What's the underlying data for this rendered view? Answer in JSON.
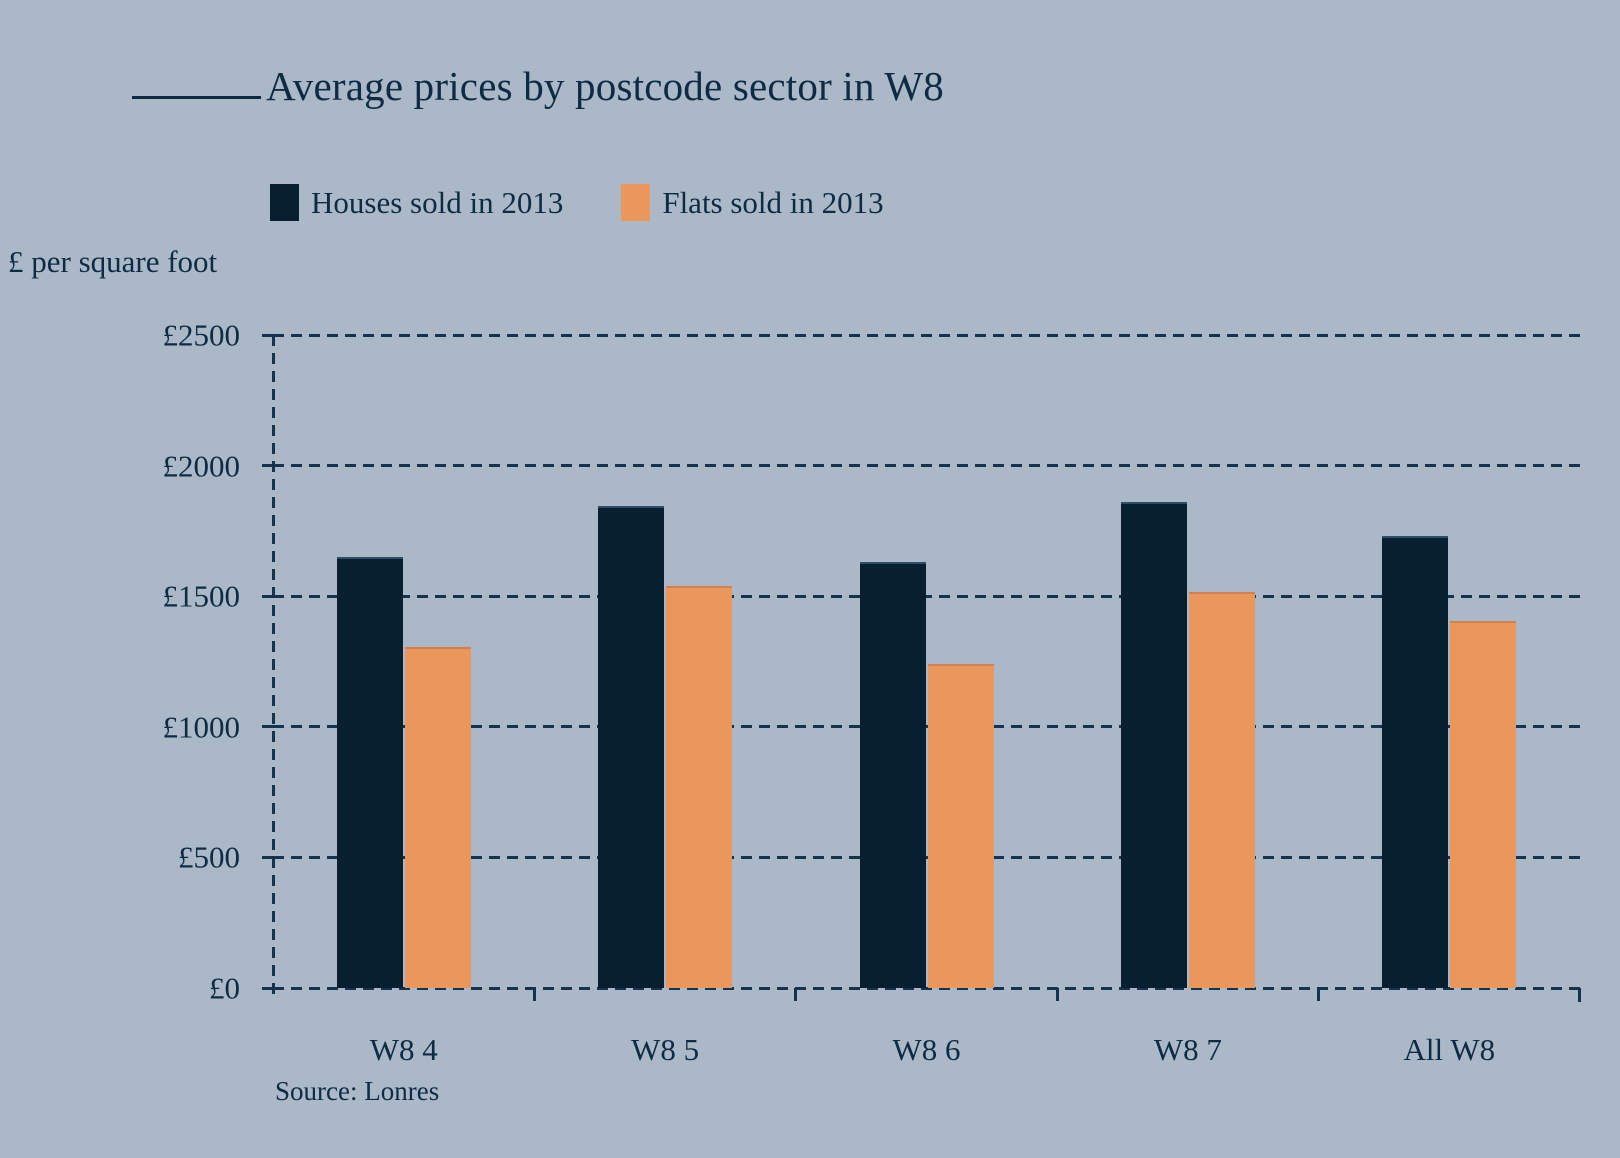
{
  "title": "Average prices by postcode sector in W8",
  "source": "Source: Lonres",
  "colors": {
    "background": "#abb8c8",
    "text": "#0e2b44",
    "gridline": "#16334e",
    "houses": "#071f2f",
    "flats": "#ea975c"
  },
  "chart_data": {
    "type": "bar",
    "title": "Average prices by postcode sector in W8",
    "ylabel": "£ per square foot",
    "categories": [
      "W8 4",
      "W8 5",
      "W8 6",
      "W8 7",
      "All W8"
    ],
    "series": [
      {
        "name": "Houses sold in 2013",
        "color": "#071f2f",
        "values": [
          1650,
          1845,
          1630,
          1860,
          1730
        ]
      },
      {
        "name": "Flats sold in 2013",
        "color": "#ea975c",
        "values": [
          1305,
          1540,
          1240,
          1515,
          1405
        ]
      }
    ],
    "ylim": [
      0,
      2500
    ],
    "yticks": [
      0,
      500,
      1000,
      1500,
      2000,
      2500
    ],
    "ytick_labels": [
      "£0",
      "£500",
      "£1000",
      "£1500",
      "£2000",
      "£2500"
    ],
    "grid": "dashed horizontal gridlines, dashed y-axis",
    "legend_position": "top"
  }
}
